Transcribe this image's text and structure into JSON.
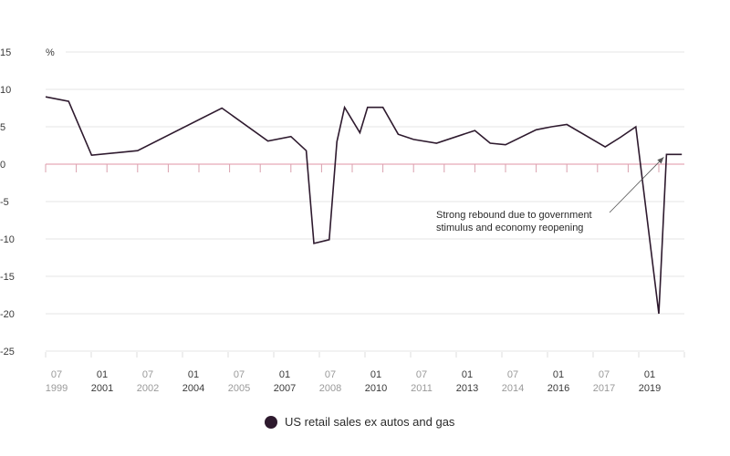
{
  "chart_data": {
    "type": "line",
    "title": "",
    "xlabel": "",
    "ylabel": "%",
    "ylim": [
      -25,
      15
    ],
    "yticks": [
      15,
      10,
      5,
      0,
      -5,
      -10,
      -15,
      -20,
      -25
    ],
    "grid": true,
    "legend_position": "bottom-center",
    "colors": {
      "line": "#2e1a2e",
      "zero_line": "#e6a9b6",
      "grid": "#dddddd",
      "tick": "#d9a0ae"
    },
    "x_labels": [
      {
        "top": "07",
        "bottom": "1999",
        "emphasis": false
      },
      {
        "top": "01",
        "bottom": "2001",
        "emphasis": true
      },
      {
        "top": "07",
        "bottom": "2002",
        "emphasis": false
      },
      {
        "top": "01",
        "bottom": "2004",
        "emphasis": true
      },
      {
        "top": "07",
        "bottom": "2005",
        "emphasis": false
      },
      {
        "top": "01",
        "bottom": "2007",
        "emphasis": true
      },
      {
        "top": "07",
        "bottom": "2008",
        "emphasis": false
      },
      {
        "top": "01",
        "bottom": "2010",
        "emphasis": true
      },
      {
        "top": "07",
        "bottom": "2011",
        "emphasis": false
      },
      {
        "top": "01",
        "bottom": "2013",
        "emphasis": true
      },
      {
        "top": "07",
        "bottom": "2014",
        "emphasis": false
      },
      {
        "top": "01",
        "bottom": "2016",
        "emphasis": true
      },
      {
        "top": "07",
        "bottom": "2017",
        "emphasis": false
      },
      {
        "top": "01",
        "bottom": "2019",
        "emphasis": true
      }
    ],
    "series": [
      {
        "name": "US retail sales ex autos and gas",
        "x": [
          "1999-07",
          "2000-04",
          "2001-01",
          "2002-07",
          "2005-04",
          "2006-10",
          "2007-07",
          "2008-01",
          "2008-04",
          "2008-10",
          "2009-01",
          "2009-04",
          "2009-10",
          "2010-01",
          "2010-07",
          "2011-01",
          "2011-07",
          "2012-04",
          "2013-07",
          "2014-01",
          "2014-07",
          "2015-07",
          "2016-01",
          "2016-07",
          "2017-10",
          "2018-04",
          "2018-10",
          "2019-07",
          "2019-10",
          "2020-04"
        ],
        "values": [
          9.0,
          8.4,
          1.2,
          1.8,
          7.5,
          3.1,
          3.7,
          1.8,
          -10.6,
          -10.1,
          3.0,
          7.6,
          4.2,
          7.6,
          7.6,
          4.0,
          3.3,
          2.8,
          4.5,
          2.8,
          2.6,
          4.6,
          5.0,
          5.3,
          2.3,
          3.6,
          5.0,
          -20.0,
          1.3,
          1.3
        ]
      }
    ],
    "annotation": {
      "lines": [
        "Strong rebound due to government",
        "stimulus and economy reopening"
      ],
      "target_x": "2019-10",
      "target_y": 1.3
    }
  }
}
